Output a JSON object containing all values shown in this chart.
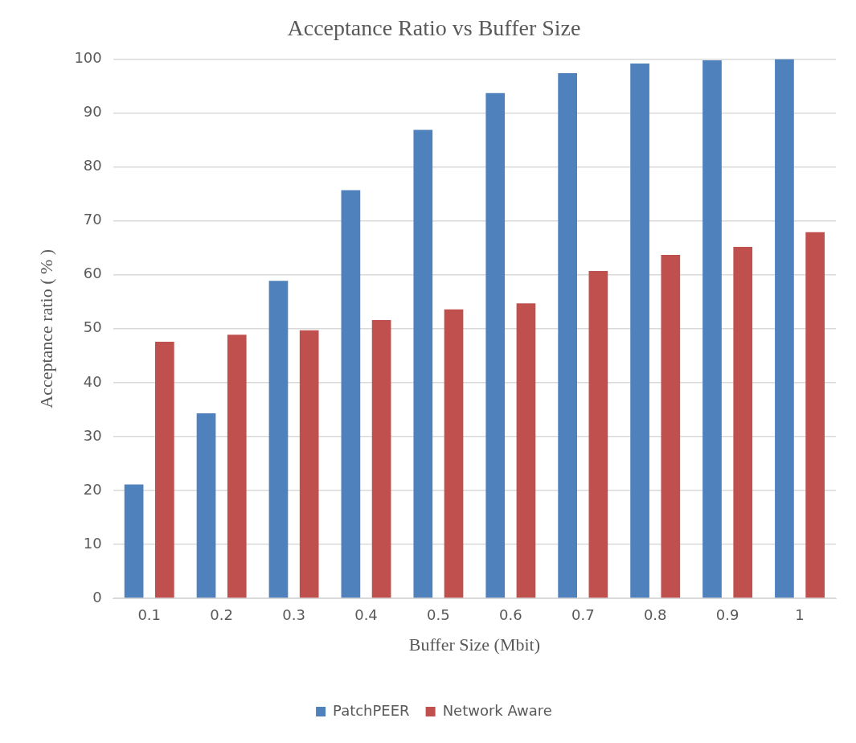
{
  "chart_data": {
    "type": "bar",
    "title": "Acceptance Ratio vs Buffer Size",
    "xlabel": "Buffer Size (Mbit)",
    "ylabel": "Acceptance ratio ( % )",
    "categories": [
      "0.1",
      "0.2",
      "0.3",
      "0.4",
      "0.5",
      "0.6",
      "0.7",
      "0.8",
      "0.9",
      "1"
    ],
    "series": [
      {
        "name": "PatchPEER",
        "color": "#4f81bd",
        "values": [
          21.1,
          34.3,
          58.9,
          75.7,
          86.9,
          93.7,
          97.4,
          99.2,
          99.8,
          100
        ]
      },
      {
        "name": "Network Aware",
        "color": "#c0504d",
        "values": [
          47.6,
          48.9,
          49.7,
          51.6,
          53.6,
          54.7,
          60.7,
          63.7,
          65.2,
          67.9
        ]
      }
    ],
    "ylim": [
      0,
      100
    ],
    "yticks": [
      0,
      10,
      20,
      30,
      40,
      50,
      60,
      70,
      80,
      90,
      100
    ],
    "grid": "y",
    "legend": "bottom"
  }
}
